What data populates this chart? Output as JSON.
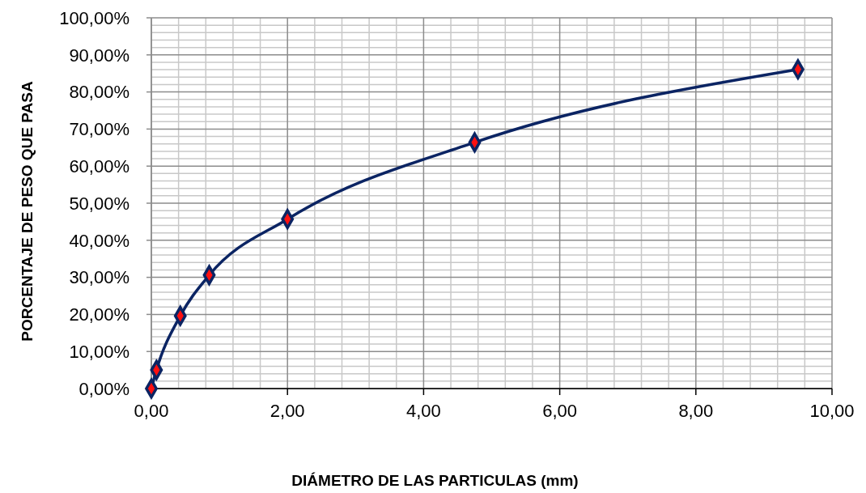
{
  "chart_data": {
    "type": "line",
    "xlabel": "DIÁMETRO DE LAS PARTICULAS (mm)",
    "ylabel": "PORCENTAJE DE PESO QUE PASA",
    "x": [
      0,
      0.075,
      0.425,
      0.85,
      2,
      4.75,
      9.5
    ],
    "series": [
      {
        "color": "#0b2463",
        "values": [
          0,
          5,
          19.6,
          30.6,
          45.7,
          66.4,
          86.1
        ]
      }
    ],
    "xlim": [
      0,
      10
    ],
    "xticks": [
      {
        "value": 0,
        "label": "0,00"
      },
      {
        "value": 0.4,
        "label": null
      },
      {
        "value": 0.8,
        "label": null
      },
      {
        "value": 1.2,
        "label": null
      },
      {
        "value": 1.6,
        "label": null
      },
      {
        "value": 2,
        "label": "2,00"
      },
      {
        "value": 2.4,
        "label": null
      },
      {
        "value": 2.8,
        "label": null
      },
      {
        "value": 3.2,
        "label": null
      },
      {
        "value": 3.6,
        "label": null
      },
      {
        "value": 4,
        "label": "4,00"
      },
      {
        "value": 4.4,
        "label": null
      },
      {
        "value": 4.8,
        "label": null
      },
      {
        "value": 5.2,
        "label": null
      },
      {
        "value": 5.6,
        "label": null
      },
      {
        "value": 6,
        "label": "6,00"
      },
      {
        "value": 6.4,
        "label": null
      },
      {
        "value": 6.8,
        "label": null
      },
      {
        "value": 7.2,
        "label": null
      },
      {
        "value": 7.6,
        "label": null
      },
      {
        "value": 8,
        "label": "8,00"
      },
      {
        "value": 8.4,
        "label": null
      },
      {
        "value": 8.8,
        "label": null
      },
      {
        "value": 9.2,
        "label": null
      },
      {
        "value": 9.6,
        "label": null
      },
      {
        "value": 10,
        "label": "10,00"
      }
    ],
    "ylim": [
      0,
      100
    ],
    "yticks": [
      {
        "value": 0,
        "label": "0,00%"
      },
      {
        "value": 10,
        "label": "10,00%"
      },
      {
        "value": 20,
        "label": "20,00%"
      },
      {
        "value": 30,
        "label": "30,00%"
      },
      {
        "value": 40,
        "label": "40,00%"
      },
      {
        "value": 50,
        "label": "50,00%"
      },
      {
        "value": 60,
        "label": "60,00%"
      },
      {
        "value": 70,
        "label": "70,00%"
      },
      {
        "value": 80,
        "label": "80,00%"
      },
      {
        "value": 90,
        "label": "90,00%"
      },
      {
        "value": 100,
        "label": "100,00%"
      }
    ],
    "grid": true,
    "marker": "diamond",
    "line_style": "solid"
  }
}
